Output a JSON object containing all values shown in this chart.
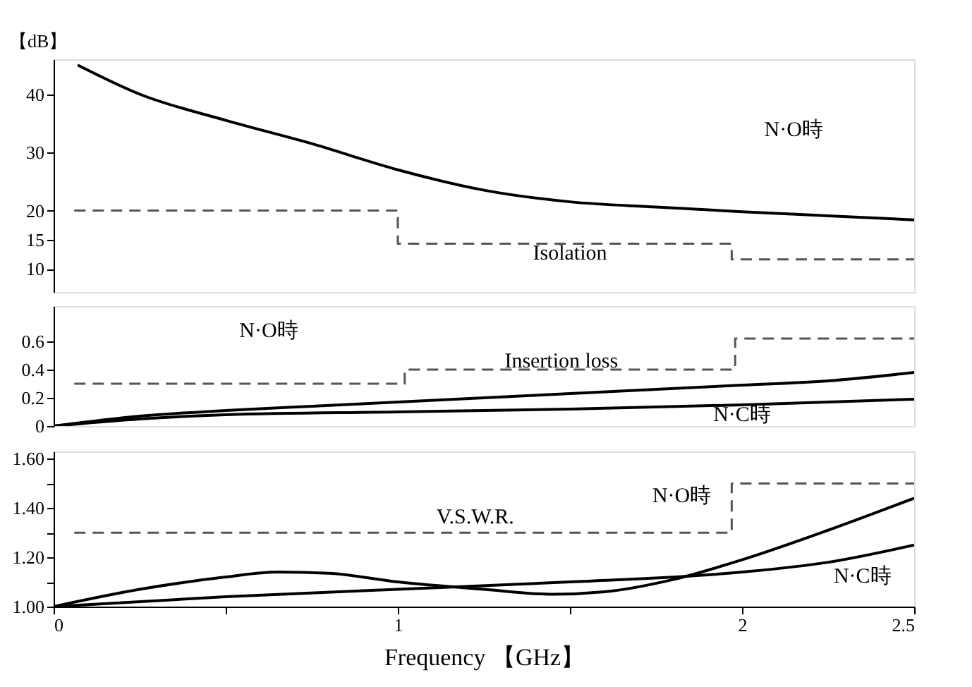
{
  "chart_data": [
    {
      "type": "line",
      "ylabel": "【dB】",
      "xlim": [
        0,
        2.5
      ],
      "ylim": [
        6,
        46
      ],
      "yticks": [
        10,
        15,
        20,
        30,
        40
      ],
      "tick_labels": "y",
      "series": [
        {
          "line_style": "solid",
          "color": "#000000",
          "x": [
            0.07,
            0.25,
            0.5,
            0.75,
            1,
            1.25,
            1.5,
            1.75,
            2,
            2.25,
            2.5
          ],
          "values": [
            45,
            40,
            35.5,
            31.5,
            27,
            23.5,
            21.5,
            20.6,
            19.8,
            19.1,
            18.4
          ]
        },
        {
          "type": "step",
          "line_style": "dashed",
          "color": "#555555",
          "x": [
            0.06,
            1,
            1.97,
            2.5
          ],
          "values": [
            20,
            14.3,
            11.6,
            11.6
          ]
        }
      ],
      "annotations": [
        "N·O時",
        "Isolation"
      ]
    },
    {
      "type": "line",
      "xlim": [
        0,
        2.5
      ],
      "ylim": [
        0,
        0.85
      ],
      "yticks": [
        0,
        0.2,
        0.4,
        0.6
      ],
      "tick_labels": "y",
      "series": [
        {
          "line_style": "solid",
          "color": "#000000",
          "x": [
            0,
            0.25,
            0.5,
            0.75,
            1,
            1.25,
            1.5,
            1.75,
            2,
            2.25,
            2.5
          ],
          "values": [
            0,
            0.07,
            0.11,
            0.14,
            0.17,
            0.2,
            0.23,
            0.26,
            0.29,
            0.32,
            0.38
          ]
        },
        {
          "line_style": "solid",
          "color": "#000000",
          "x": [
            0,
            0.25,
            0.5,
            1,
            1.5,
            2,
            2.5
          ],
          "values": [
            0,
            0.05,
            0.08,
            0.1,
            0.12,
            0.15,
            0.19
          ]
        },
        {
          "type": "step",
          "line_style": "dashed",
          "color": "#555555",
          "x": [
            0.06,
            1.02,
            1.98,
            2.5
          ],
          "values": [
            0.3,
            0.4,
            0.62,
            0.62
          ]
        }
      ],
      "annotations": [
        "N·O時",
        "Insertion loss",
        "N·C時"
      ]
    },
    {
      "type": "line",
      "xlabel": "Frequency 【GHz】",
      "xlim": [
        0,
        2.5
      ],
      "ylim": [
        1,
        1.63
      ],
      "xticks": [
        0,
        {
          "value": 0.5,
          "label": null
        },
        1,
        {
          "value": 1.5,
          "label": null
        },
        2,
        2.5
      ],
      "yticks": [
        {
          "value": 1.0,
          "label": "1.00"
        },
        {
          "value": 1.1,
          "label": null
        },
        {
          "value": 1.2,
          "label": "1.20"
        },
        {
          "value": 1.3,
          "label": null
        },
        {
          "value": 1.4,
          "label": "1.40"
        },
        {
          "value": 1.5,
          "label": null
        },
        {
          "value": 1.6,
          "label": "1.60"
        }
      ],
      "series": [
        {
          "line_style": "solid",
          "color": "#000000",
          "x": [
            0,
            0.25,
            0.5,
            0.65,
            0.8,
            1,
            1.25,
            1.45,
            1.6,
            1.8,
            2,
            2.25,
            2.5
          ],
          "values": [
            1.0,
            1.07,
            1.12,
            1.14,
            1.135,
            1.1,
            1.07,
            1.05,
            1.06,
            1.11,
            1.19,
            1.31,
            1.44
          ]
        },
        {
          "line_style": "solid",
          "color": "#000000",
          "x": [
            0,
            0.5,
            1,
            1.5,
            2,
            2.25,
            2.5
          ],
          "values": [
            1.0,
            1.04,
            1.07,
            1.1,
            1.14,
            1.18,
            1.25
          ]
        },
        {
          "type": "step",
          "line_style": "dashed",
          "color": "#555555",
          "x": [
            0.06,
            1.97,
            2.5
          ],
          "values": [
            1.3,
            1.5,
            1.5
          ]
        }
      ],
      "annotations": [
        "V.S.W.R.",
        "N·O時",
        "N·C時"
      ]
    }
  ]
}
